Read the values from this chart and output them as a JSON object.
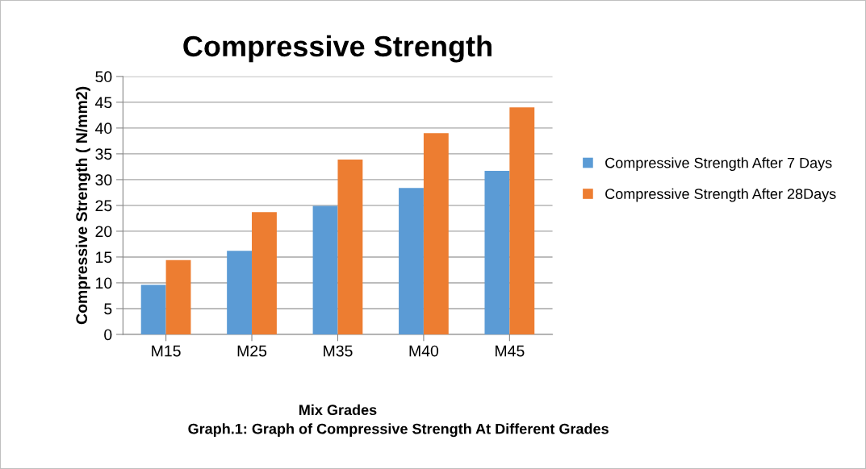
{
  "chart_data": {
    "type": "bar",
    "title": "Compressive Strength",
    "xlabel": "Mix Grades",
    "ylabel": "Compressive Strength ( N/mm2)",
    "categories": [
      "M15",
      "M25",
      "M35",
      "M40",
      "M45"
    ],
    "series": [
      {
        "name": "Compressive Strength After 7 Days",
        "color": "#5b9bd5",
        "values": [
          9.6,
          16.2,
          24.9,
          28.4,
          31.7
        ]
      },
      {
        "name": "Compressive Strength After 28Days",
        "color": "#ed7d31",
        "values": [
          14.4,
          23.7,
          33.9,
          39.0,
          44.0
        ]
      }
    ],
    "ylim": [
      0,
      50
    ],
    "yticks": [
      0,
      5,
      10,
      15,
      20,
      25,
      30,
      35,
      40,
      45,
      50
    ],
    "grid": "y",
    "legend": "right",
    "annotations": [
      "Graph.1: Graph of Compressive Strength At Different Grades"
    ]
  }
}
